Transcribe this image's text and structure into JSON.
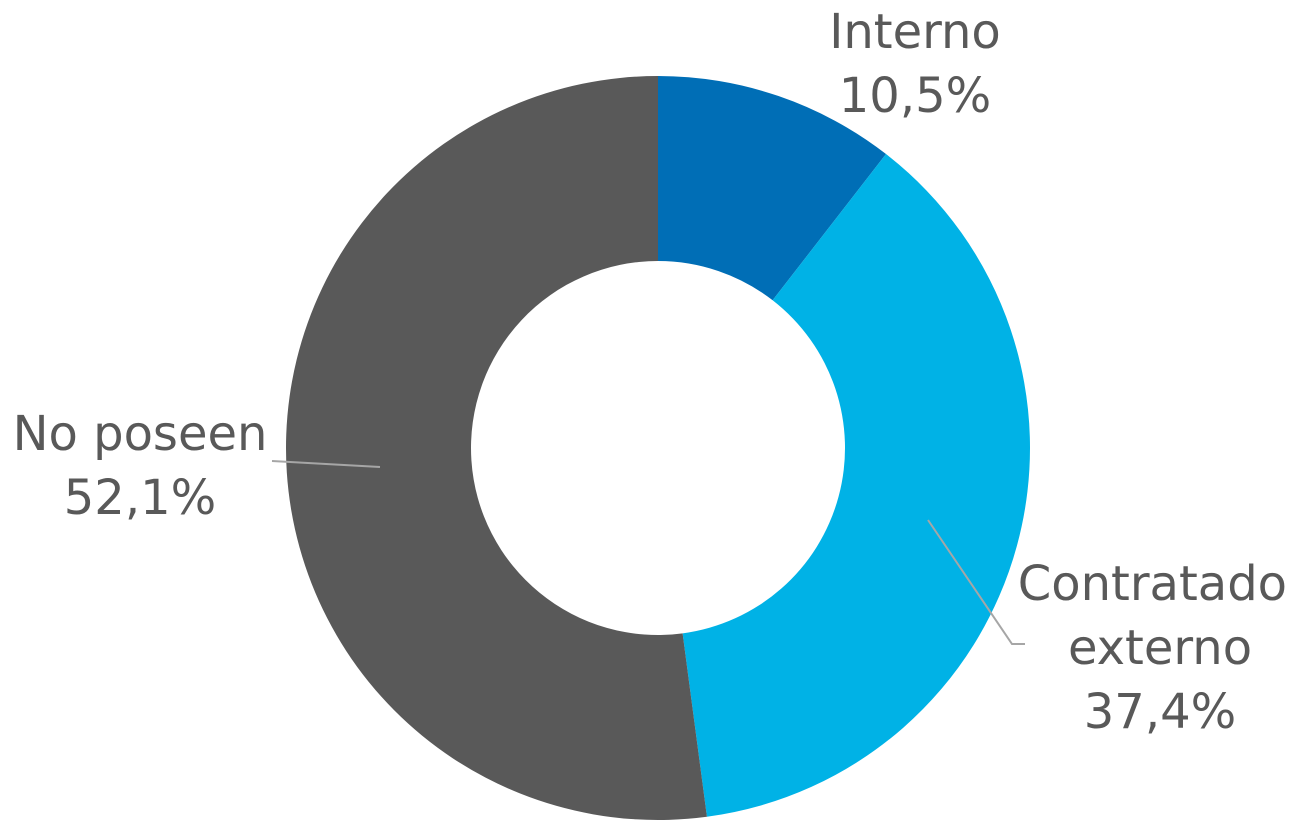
{
  "chart_data": {
    "type": "pie",
    "variant": "donut",
    "title": "",
    "slices": [
      {
        "label_lines": [
          "Interno"
        ],
        "value": 10.5,
        "value_text": "10,5%",
        "color": "#006EB6"
      },
      {
        "label_lines": [
          "Contratado",
          "externo"
        ],
        "value": 37.4,
        "value_text": "37,4%",
        "color": "#00B2E6"
      },
      {
        "label_lines": [
          "No poseen"
        ],
        "value": 52.1,
        "value_text": "52,1%",
        "color": "#595959"
      }
    ],
    "legend": "none",
    "label_color": "#595959",
    "leader_line_color": "#A6A6A6"
  }
}
